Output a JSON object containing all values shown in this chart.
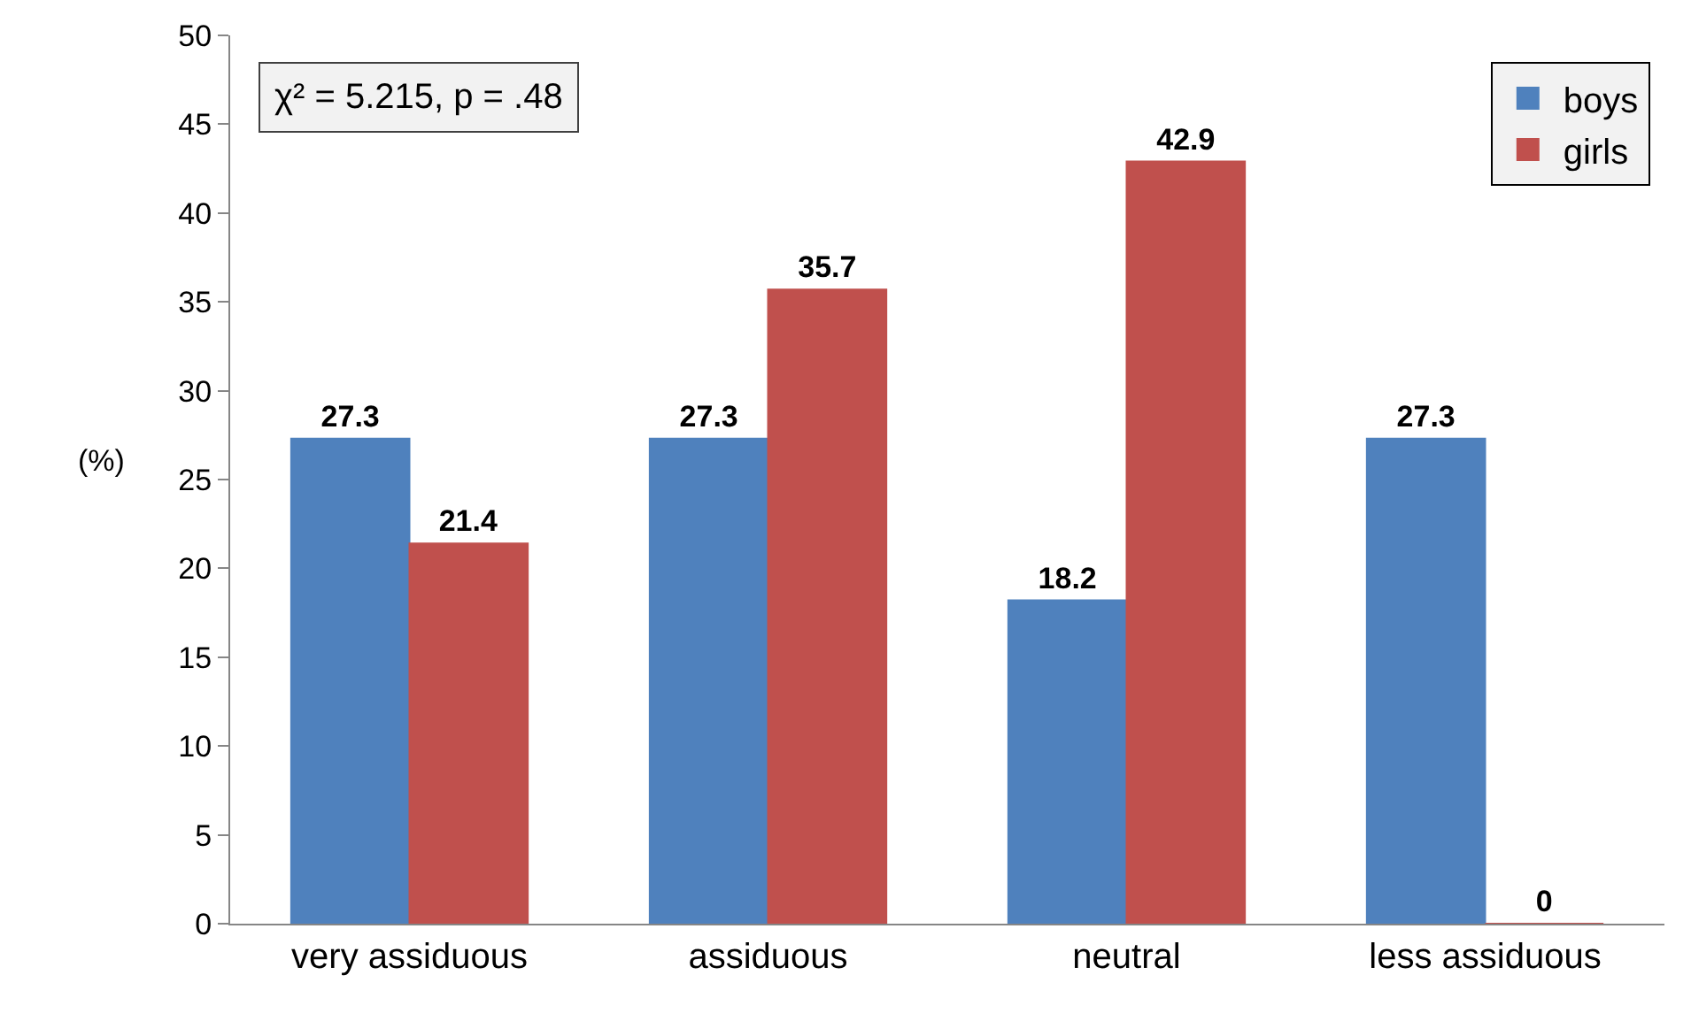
{
  "chart_data": {
    "type": "bar",
    "categories": [
      "very assiduous",
      "assiduous",
      "neutral",
      "less assiduous"
    ],
    "series": [
      {
        "name": "boys",
        "color": "#4f81bd",
        "values": [
          27.3,
          27.3,
          18.2,
          27.3
        ]
      },
      {
        "name": "girls",
        "color": "#c0504d",
        "values": [
          21.4,
          35.7,
          42.9,
          0
        ]
      }
    ],
    "ylabel": "(%)",
    "ylim": [
      0,
      50
    ],
    "yticks": [
      0,
      5,
      10,
      15,
      20,
      25,
      30,
      35,
      40,
      45,
      50
    ],
    "annotations": [
      "χ² = 5.215, p = .48"
    ],
    "data_labels": true,
    "grid": false,
    "legend": "top right"
  }
}
